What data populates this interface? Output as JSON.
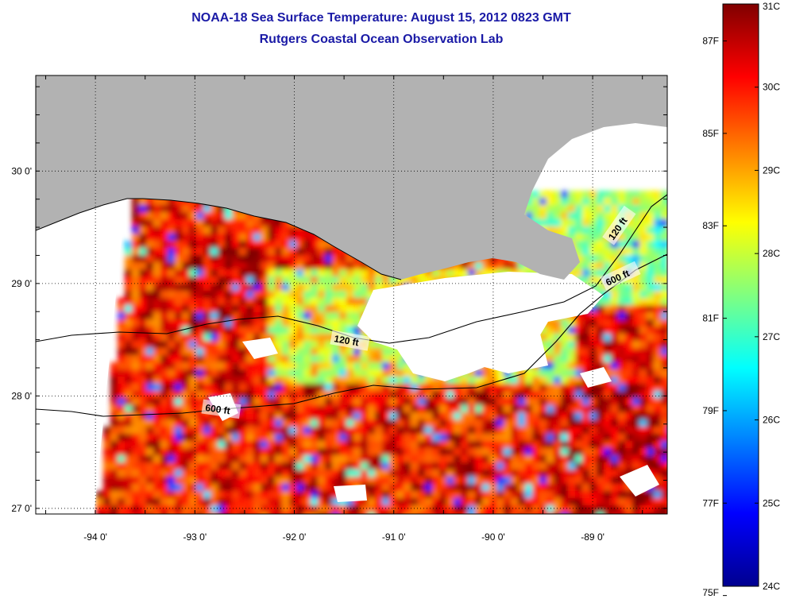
{
  "title": "NOAA-18 Sea Surface Temperature:  August 15, 2012 0823 GMT",
  "subtitle": "Rutgers Coastal Ocean Observation Lab",
  "map": {
    "lon_range": [
      -94.6,
      -88.25
    ],
    "lat_range": [
      26.95,
      30.85
    ],
    "lon_ticks": [
      {
        "value": -94,
        "label": "-94 0'"
      },
      {
        "value": -93,
        "label": "-93 0'"
      },
      {
        "value": -92,
        "label": "-92 0'"
      },
      {
        "value": -91,
        "label": "-91 0'"
      },
      {
        "value": -90,
        "label": "-90 0'"
      },
      {
        "value": -89,
        "label": "-89 0'"
      }
    ],
    "lat_ticks": [
      {
        "value": 30,
        "label": "30 0'"
      },
      {
        "value": 29,
        "label": "29 0'"
      },
      {
        "value": 28,
        "label": "28 0'"
      },
      {
        "value": 27,
        "label": "27 0'"
      }
    ],
    "land_color": "#b2b2b2",
    "no_data_color": "#ffffff",
    "contours": [
      {
        "label": "120 ft"
      },
      {
        "label": "120 ft"
      },
      {
        "label": "600 ft"
      },
      {
        "label": "600 ft"
      }
    ]
  },
  "colorbar": {
    "celsius_range": [
      24,
      31
    ],
    "celsius_labels": [
      "31C",
      "30C",
      "29C",
      "28C",
      "27C",
      "26C",
      "25C",
      "24C"
    ],
    "fahrenheit_labels": [
      {
        "value": 87,
        "label": "87F"
      },
      {
        "value": 85,
        "label": "85F"
      },
      {
        "value": 83,
        "label": "83F"
      },
      {
        "value": 81,
        "label": "81F"
      },
      {
        "value": 79,
        "label": "79F"
      },
      {
        "value": 77,
        "label": "77F"
      },
      {
        "value": 75,
        "label": "75F"
      }
    ],
    "colormap": "jet"
  }
}
